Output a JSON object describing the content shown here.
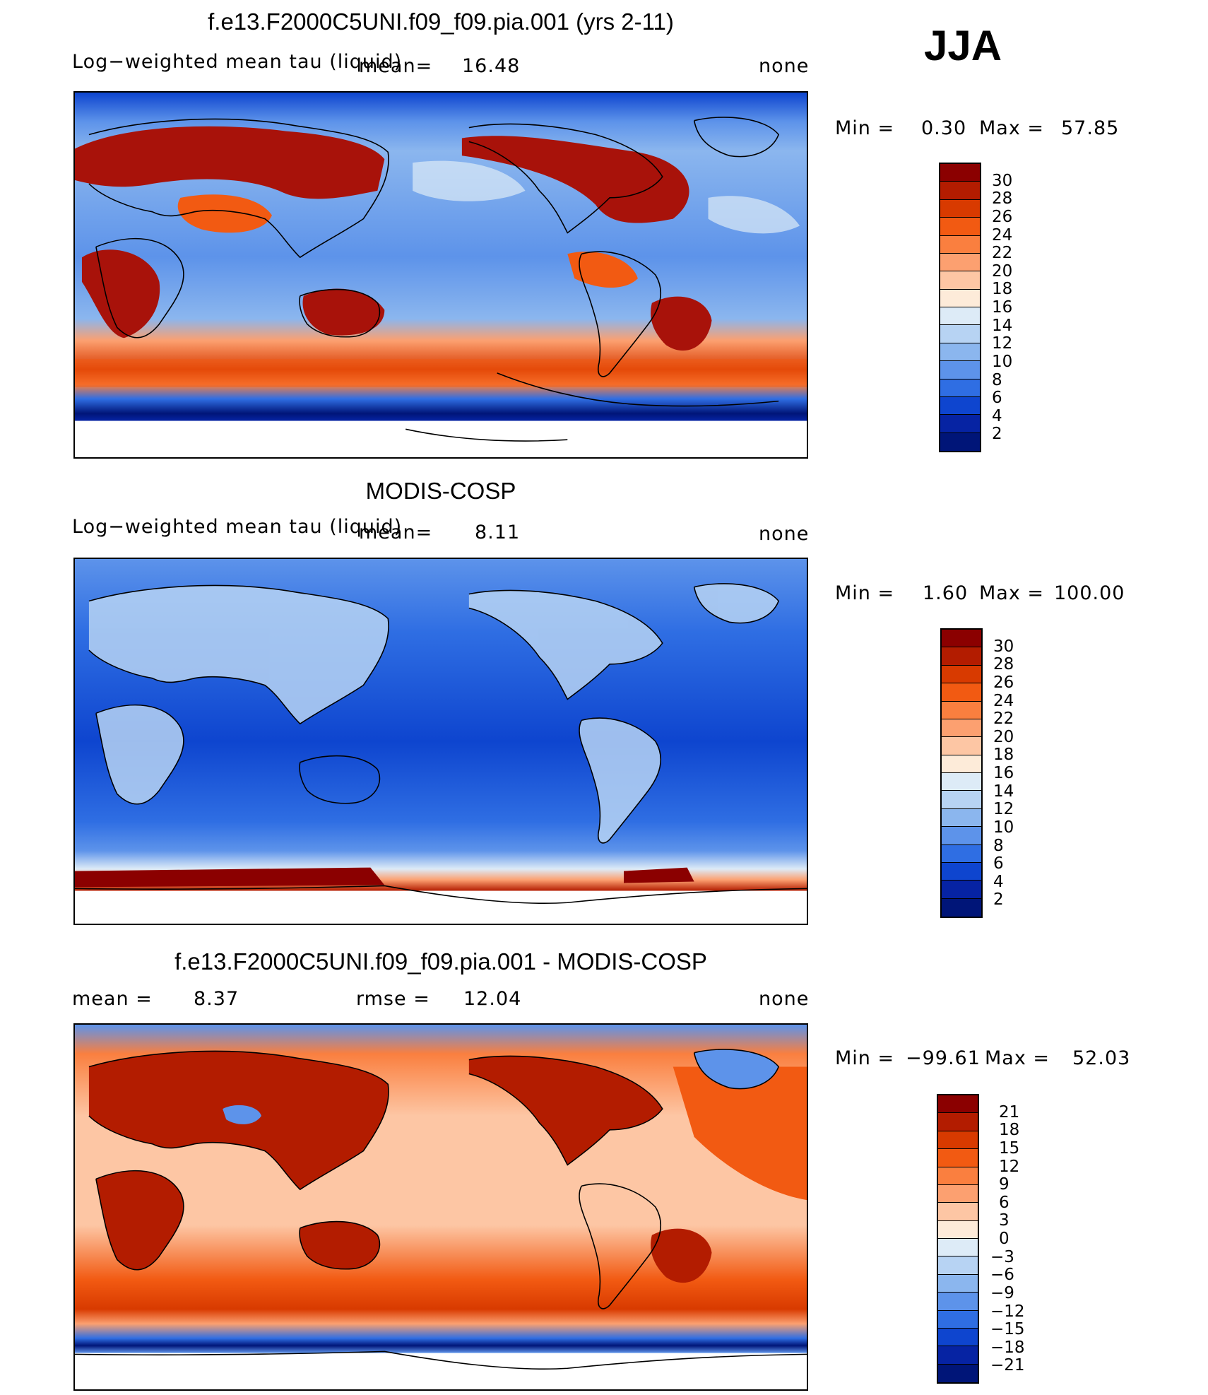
{
  "season": "JJA",
  "panels": [
    {
      "title": "f.e13.F2000C5UNI.f09_f09.pia.001 (yrs 2-11)",
      "left_label": "Log−weighted mean tau (liquid)",
      "mean_label": "mean=",
      "mean_value": "16.48",
      "right_label": "none",
      "min_label": "Min =",
      "min_value": "0.30",
      "max_label": "Max =",
      "max_value": "57.85",
      "colorbar_labels": [
        "30",
        "28",
        "26",
        "24",
        "22",
        "20",
        "18",
        "16",
        "14",
        "12",
        "10",
        "8",
        "6",
        "4",
        "2"
      ],
      "colorbar_colors": [
        "#8b0000",
        "#b31c00",
        "#d83a00",
        "#f25a12",
        "#fa7f3f",
        "#fca070",
        "#fdc6a4",
        "#fdebd9",
        "#ddebf7",
        "#b7d3f3",
        "#8bb6ee",
        "#5d93ea",
        "#2f6ee3",
        "#0e45cf",
        "#0623a3",
        "#001578"
      ]
    },
    {
      "title": "MODIS-COSP",
      "left_label": "Log−weighted mean tau (liquid)",
      "mean_label": "mean=",
      "mean_value": "8.11",
      "right_label": "none",
      "min_label": "Min =",
      "min_value": "1.60",
      "max_label": "Max =",
      "max_value": "100.00",
      "colorbar_labels": [
        "30",
        "28",
        "26",
        "24",
        "22",
        "20",
        "18",
        "16",
        "14",
        "12",
        "10",
        "8",
        "6",
        "4",
        "2"
      ],
      "colorbar_colors": [
        "#8b0000",
        "#b31c00",
        "#d83a00",
        "#f25a12",
        "#fa7f3f",
        "#fca070",
        "#fdc6a4",
        "#fdebd9",
        "#ddebf7",
        "#b7d3f3",
        "#8bb6ee",
        "#5d93ea",
        "#2f6ee3",
        "#0e45cf",
        "#0623a3",
        "#001578"
      ]
    },
    {
      "title": "f.e13.F2000C5UNI.f09_f09.pia.001 - MODIS-COSP",
      "mean_label": "mean =",
      "mean_value": "8.37",
      "rmse_label": "rmse =",
      "rmse_value": "12.04",
      "right_label": "none",
      "min_label": "Min =",
      "min_value": "−99.61",
      "max_label": "Max =",
      "max_value": "52.03",
      "colorbar_labels": [
        "21",
        "18",
        "15",
        "12",
        "9",
        "6",
        "3",
        "0",
        "−3",
        "−6",
        "−9",
        "−12",
        "−15",
        "−18",
        "−21"
      ],
      "colorbar_colors": [
        "#8b0000",
        "#b31c00",
        "#d83a00",
        "#f25a12",
        "#fa7f3f",
        "#fca070",
        "#fdc6a4",
        "#fdebd9",
        "#ddebf7",
        "#b7d3f3",
        "#8bb6ee",
        "#5d93ea",
        "#2f6ee3",
        "#0e45cf",
        "#0623a3",
        "#001578"
      ]
    }
  ]
}
